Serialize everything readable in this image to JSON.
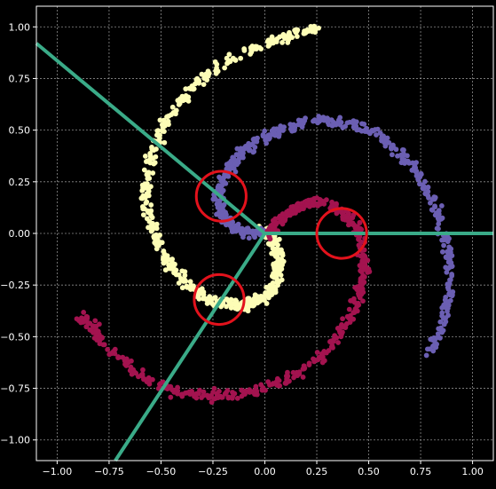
{
  "chart_data": {
    "type": "scatter",
    "title": "",
    "xlabel": "",
    "ylabel": "",
    "xlim": [
      -1.1,
      1.1
    ],
    "ylim": [
      -1.1,
      1.1
    ],
    "grid": true,
    "x_ticks": [
      "−1.00",
      "−0.75",
      "−0.50",
      "−0.25",
      "0.00",
      "0.25",
      "0.50",
      "0.75",
      "1.00"
    ],
    "x_tick_values": [
      -1.0,
      -0.75,
      -0.5,
      -0.25,
      0.0,
      0.25,
      0.5,
      0.75,
      1.0
    ],
    "y_ticks": [
      "1.00",
      "0.75",
      "0.50",
      "0.25",
      "0.00",
      "−0.25",
      "−0.50",
      "−0.75",
      "−1.00"
    ],
    "y_tick_values": [
      1.0,
      0.75,
      0.5,
      0.25,
      0.0,
      -0.25,
      -0.5,
      -0.75,
      -1.0
    ],
    "series": [
      {
        "color": "#fdfdb6",
        "spiral_points": [
          [
            -0.01,
            0.02
          ],
          [
            0.04,
            -0.02
          ],
          [
            0.06,
            -0.09
          ],
          [
            0.07,
            -0.16
          ],
          [
            0.06,
            -0.23
          ],
          [
            0.02,
            -0.29
          ],
          [
            -0.04,
            -0.33
          ],
          [
            -0.12,
            -0.35
          ],
          [
            -0.21,
            -0.34
          ],
          [
            -0.3,
            -0.31
          ],
          [
            -0.39,
            -0.24
          ],
          [
            -0.47,
            -0.14
          ],
          [
            -0.53,
            -0.02
          ],
          [
            -0.57,
            0.12
          ],
          [
            -0.57,
            0.27
          ],
          [
            -0.53,
            0.43
          ],
          [
            -0.45,
            0.58
          ],
          [
            -0.34,
            0.71
          ],
          [
            -0.2,
            0.82
          ],
          [
            -0.03,
            0.91
          ],
          [
            0.14,
            0.97
          ],
          [
            0.25,
            0.99
          ]
        ]
      },
      {
        "color": "#6b5fb3",
        "spiral_points": [
          [
            0.0,
            0.0
          ],
          [
            -0.08,
            0.0
          ],
          [
            -0.15,
            0.03
          ],
          [
            -0.2,
            0.09
          ],
          [
            -0.22,
            0.16
          ],
          [
            -0.21,
            0.24
          ],
          [
            -0.17,
            0.32
          ],
          [
            -0.1,
            0.4
          ],
          [
            0.0,
            0.47
          ],
          [
            0.12,
            0.52
          ],
          [
            0.26,
            0.55
          ],
          [
            0.4,
            0.53
          ],
          [
            0.54,
            0.48
          ],
          [
            0.66,
            0.38
          ],
          [
            0.76,
            0.25
          ],
          [
            0.84,
            0.09
          ],
          [
            0.88,
            -0.09
          ],
          [
            0.89,
            -0.27
          ],
          [
            0.86,
            -0.44
          ],
          [
            0.8,
            -0.58
          ]
        ]
      },
      {
        "color": "#a3134f",
        "spiral_points": [
          [
            0.02,
            0.0
          ],
          [
            0.07,
            0.07
          ],
          [
            0.14,
            0.12
          ],
          [
            0.22,
            0.15
          ],
          [
            0.3,
            0.14
          ],
          [
            0.38,
            0.1
          ],
          [
            0.44,
            0.03
          ],
          [
            0.47,
            -0.06
          ],
          [
            0.48,
            -0.17
          ],
          [
            0.46,
            -0.29
          ],
          [
            0.41,
            -0.41
          ],
          [
            0.33,
            -0.53
          ],
          [
            0.22,
            -0.64
          ],
          [
            0.08,
            -0.72
          ],
          [
            -0.08,
            -0.77
          ],
          [
            -0.25,
            -0.79
          ],
          [
            -0.42,
            -0.77
          ],
          [
            -0.58,
            -0.7
          ],
          [
            -0.72,
            -0.59
          ],
          [
            -0.82,
            -0.47
          ],
          [
            -0.89,
            -0.4
          ]
        ]
      }
    ],
    "lines": [
      {
        "color": "#3aab88",
        "from": [
          0.0,
          0.0
        ],
        "to": [
          -1.1,
          0.92
        ]
      },
      {
        "color": "#3aab88",
        "from": [
          0.0,
          0.0
        ],
        "to": [
          1.1,
          0.0
        ]
      },
      {
        "color": "#3aab88",
        "from": [
          0.0,
          0.0
        ],
        "to": [
          -0.72,
          -1.1
        ]
      }
    ],
    "circles": [
      {
        "color": "#e3121c",
        "center": [
          -0.21,
          0.18
        ],
        "radius_x": 0.12
      },
      {
        "color": "#e3121c",
        "center": [
          0.37,
          0.0
        ],
        "radius_x": 0.12
      },
      {
        "color": "#e3121c",
        "center": [
          -0.22,
          -0.32
        ],
        "radius_x": 0.12
      }
    ]
  }
}
